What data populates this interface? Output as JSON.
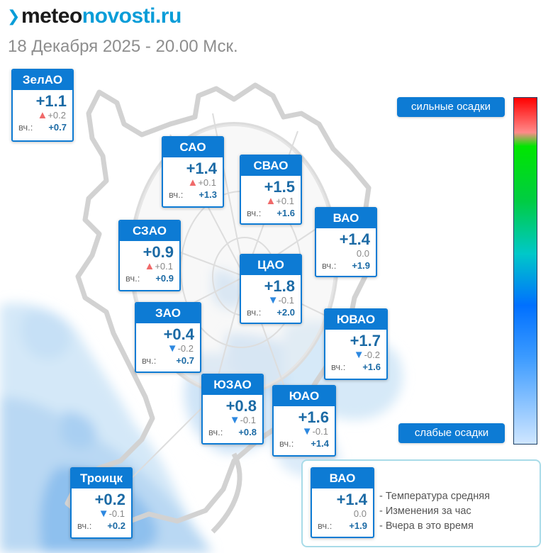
{
  "header": {
    "logo": {
      "prefix": "meteo",
      "suffix": "novosti.ru",
      "brand_color": "#0a9dd8"
    },
    "subtitle": "18 Декабря 2025 - 20.00 Мск."
  },
  "districts": [
    {
      "name": "ЗелАО",
      "temp": "+1.1",
      "change": "+0.2",
      "trend": "up",
      "yesterday_label": "вч.:",
      "yesterday": "+0.7"
    },
    {
      "name": "САО",
      "temp": "+1.4",
      "change": "+0.1",
      "trend": "up",
      "yesterday_label": "вч.:",
      "yesterday": "+1.3"
    },
    {
      "name": "СВАО",
      "temp": "+1.5",
      "change": "+0.1",
      "trend": "up",
      "yesterday_label": "вч.:",
      "yesterday": "+1.6"
    },
    {
      "name": "ВАО",
      "temp": "+1.4",
      "change": "0.0",
      "trend": "none",
      "yesterday_label": "вч.:",
      "yesterday": "+1.9"
    },
    {
      "name": "СЗАО",
      "temp": "+0.9",
      "change": "+0.1",
      "trend": "up",
      "yesterday_label": "вч.:",
      "yesterday": "+0.9"
    },
    {
      "name": "ЦАО",
      "temp": "+1.8",
      "change": "-0.1",
      "trend": "down",
      "yesterday_label": "вч.:",
      "yesterday": "+2.0"
    },
    {
      "name": "ЗАО",
      "temp": "+0.4",
      "change": "-0.2",
      "trend": "down",
      "yesterday_label": "вч.:",
      "yesterday": "+0.7"
    },
    {
      "name": "ЮВАО",
      "temp": "+1.7",
      "change": "-0.2",
      "trend": "down",
      "yesterday_label": "вч.:",
      "yesterday": "+1.6"
    },
    {
      "name": "ЮЗАО",
      "temp": "+0.8",
      "change": "-0.1",
      "trend": "down",
      "yesterday_label": "вч.:",
      "yesterday": "+0.8"
    },
    {
      "name": "ЮАО",
      "temp": "+1.6",
      "change": "-0.1",
      "trend": "down",
      "yesterday_label": "вч.:",
      "yesterday": "+1.4"
    },
    {
      "name": "Троицк",
      "temp": "+0.2",
      "change": "-0.1",
      "trend": "down",
      "yesterday_label": "вч.:",
      "yesterday": "+0.2"
    }
  ],
  "precip_scale": {
    "top_label": "сильные осадки",
    "bottom_label": "слабые осадки",
    "colors": [
      "#ff0000",
      "#ff8a8a",
      "#00e600",
      "#00c8c8",
      "#0070ff",
      "#cfe6ff"
    ]
  },
  "legend": {
    "sample": {
      "name": "ВАО",
      "temp": "+1.4",
      "change": "0.0",
      "trend": "none",
      "yesterday_label": "вч.:",
      "yesterday": "+1.9"
    },
    "lines": [
      "- Температура средняя",
      "- Изменения за час",
      "- Вчера в это время"
    ]
  },
  "colors": {
    "card_header": "#0d7bd4",
    "temp_text": "#1b6aa5",
    "trend_up": "#f06a6a",
    "trend_down": "#2d88e0"
  }
}
